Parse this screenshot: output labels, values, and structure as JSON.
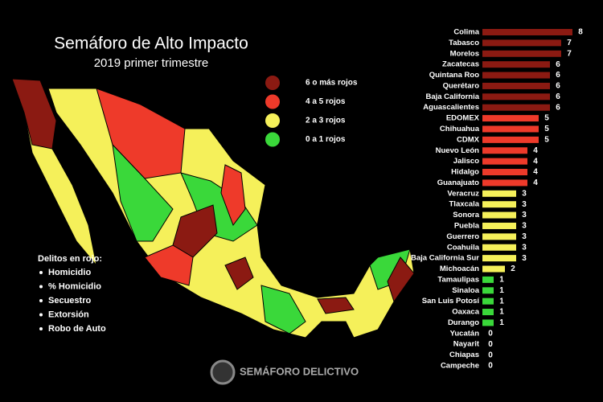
{
  "chart_data": {
    "type": "bar",
    "orientation": "horizontal",
    "title": "Semáforo de Alto Impacto",
    "subtitle": "2019 primer trimestre",
    "categories": [
      "Colima",
      "Tabasco",
      "Morelos",
      "Zacatecas",
      "Quintana Roo",
      "Querétaro",
      "Baja California",
      "Aguascalientes",
      "EDOMEX",
      "Chihuahua",
      "CDMX",
      "Nuevo León",
      "Jalisco",
      "Hidalgo",
      "Guanajuato",
      "Veracruz",
      "Tlaxcala",
      "Sonora",
      "Puebla",
      "Guerrero",
      "Coahuila",
      "Baja California Sur",
      "Michoacán",
      "Tamaulipas",
      "Sinaloa",
      "San Luis Potosí",
      "Oaxaca",
      "Durango",
      "Yucatán",
      "Nayarit",
      "Chiapas",
      "Campeche"
    ],
    "values": [
      8,
      7,
      7,
      6,
      6,
      6,
      6,
      6,
      5,
      5,
      5,
      4,
      4,
      4,
      4,
      3,
      3,
      3,
      3,
      3,
      3,
      3,
      2,
      1,
      1,
      1,
      1,
      1,
      0,
      0,
      0,
      0
    ],
    "colors": [
      "#8b1a12",
      "#8b1a12",
      "#8b1a12",
      "#8b1a12",
      "#8b1a12",
      "#8b1a12",
      "#8b1a12",
      "#8b1a12",
      "#ee3a2a",
      "#ee3a2a",
      "#ee3a2a",
      "#ee3a2a",
      "#ee3a2a",
      "#ee3a2a",
      "#ee3a2a",
      "#f5f05a",
      "#f5f05a",
      "#f5f05a",
      "#f5f05a",
      "#f5f05a",
      "#f5f05a",
      "#f5f05a",
      "#f5f05a",
      "#3ad83a",
      "#3ad83a",
      "#3ad83a",
      "#3ad83a",
      "#3ad83a",
      "#3ad83a",
      "#3ad83a",
      "#3ad83a",
      "#3ad83a"
    ],
    "xlim": [
      0,
      8
    ]
  },
  "legend": {
    "items": [
      {
        "label": "6 o más rojos",
        "color": "#8b1a12"
      },
      {
        "label": "4 a 5 rojos",
        "color": "#ee3a2a"
      },
      {
        "label": "2 a 3  rojos",
        "color": "#f5f05a"
      },
      {
        "label": "0 a 1 rojos",
        "color": "#3ad83a"
      }
    ]
  },
  "delitos": {
    "heading": "Delitos en rojo:",
    "items": [
      "Homicidio",
      "% Homicidio",
      "Secuestro",
      "Extorsión",
      "Robo de Auto"
    ]
  },
  "logo": "SEMÁFORO DELICTIVO"
}
